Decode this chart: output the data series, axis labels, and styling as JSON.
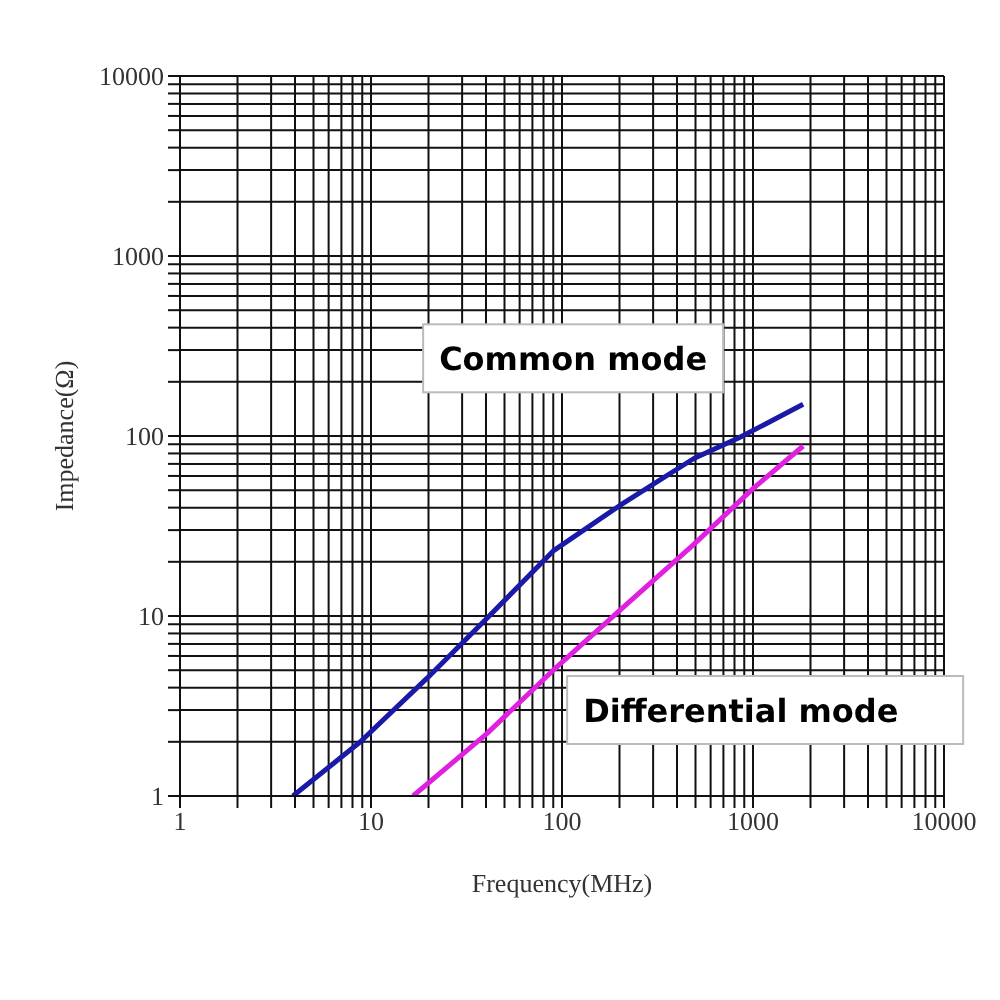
{
  "chart_data": {
    "type": "line",
    "xlabel": "Frequency(MHz)",
    "ylabel": "Impedance(Ω)",
    "log": "xy",
    "grid": true,
    "legend": false,
    "marker": "none",
    "line_style": "solid",
    "xlim": [
      1,
      10000
    ],
    "ylim": [
      1,
      10000
    ],
    "xticks": [
      1,
      {
        "value": 2,
        "label": null
      },
      {
        "value": 3,
        "label": null
      },
      {
        "value": 4,
        "label": null
      },
      {
        "value": 5,
        "label": null
      },
      {
        "value": 6,
        "label": null
      },
      {
        "value": 7,
        "label": null
      },
      {
        "value": 8,
        "label": null
      },
      {
        "value": 9,
        "label": null
      },
      10,
      {
        "value": 20,
        "label": null
      },
      {
        "value": 30,
        "label": null
      },
      {
        "value": 40,
        "label": null
      },
      {
        "value": 50,
        "label": null
      },
      {
        "value": 60,
        "label": null
      },
      {
        "value": 70,
        "label": null
      },
      {
        "value": 80,
        "label": null
      },
      {
        "value": 90,
        "label": null
      },
      100,
      {
        "value": 200,
        "label": null
      },
      {
        "value": 300,
        "label": null
      },
      {
        "value": 400,
        "label": null
      },
      {
        "value": 500,
        "label": null
      },
      {
        "value": 600,
        "label": null
      },
      {
        "value": 700,
        "label": null
      },
      {
        "value": 800,
        "label": null
      },
      {
        "value": 900,
        "label": null
      },
      1000,
      {
        "value": 2000,
        "label": null
      },
      {
        "value": 3000,
        "label": null
      },
      {
        "value": 4000,
        "label": null
      },
      {
        "value": 5000,
        "label": null
      },
      {
        "value": 6000,
        "label": null
      },
      {
        "value": 7000,
        "label": null
      },
      {
        "value": 8000,
        "label": null
      },
      {
        "value": 9000,
        "label": null
      },
      10000
    ],
    "yticks": [
      1,
      {
        "value": 2,
        "label": null
      },
      {
        "value": 3,
        "label": null
      },
      {
        "value": 4,
        "label": null
      },
      {
        "value": 5,
        "label": null
      },
      {
        "value": 6,
        "label": null
      },
      {
        "value": 7,
        "label": null
      },
      {
        "value": 8,
        "label": null
      },
      {
        "value": 9,
        "label": null
      },
      10,
      {
        "value": 20,
        "label": null
      },
      {
        "value": 30,
        "label": null
      },
      {
        "value": 40,
        "label": null
      },
      {
        "value": 50,
        "label": null
      },
      {
        "value": 60,
        "label": null
      },
      {
        "value": 70,
        "label": null
      },
      {
        "value": 80,
        "label": null
      },
      {
        "value": 90,
        "label": null
      },
      100,
      {
        "value": 200,
        "label": null
      },
      {
        "value": 300,
        "label": null
      },
      {
        "value": 400,
        "label": null
      },
      {
        "value": 500,
        "label": null
      },
      {
        "value": 600,
        "label": null
      },
      {
        "value": 700,
        "label": null
      },
      {
        "value": 800,
        "label": null
      },
      {
        "value": 900,
        "label": null
      },
      1000,
      {
        "value": 2000,
        "label": null
      },
      {
        "value": 3000,
        "label": null
      },
      {
        "value": 4000,
        "label": null
      },
      {
        "value": 5000,
        "label": null
      },
      {
        "value": 6000,
        "label": null
      },
      {
        "value": 7000,
        "label": null
      },
      {
        "value": 8000,
        "label": null
      },
      {
        "value": 9000,
        "label": null
      },
      10000
    ],
    "series": [
      {
        "name": "Common mode",
        "color": "#1a1aa8",
        "x": [
          3.9,
          8.8,
          19.6,
          40,
          90,
          200,
          490,
          850,
          1830
        ],
        "values": [
          1,
          2,
          4.5,
          9.6,
          23,
          41,
          75,
          98,
          150
        ]
      },
      {
        "name": "Differential mode",
        "color": "#e020e0",
        "x": [
          16.6,
          40,
          90,
          200,
          490,
          1000,
          1830
        ],
        "values": [
          1,
          2.2,
          5,
          10.7,
          25,
          51,
          88
        ]
      }
    ]
  }
}
